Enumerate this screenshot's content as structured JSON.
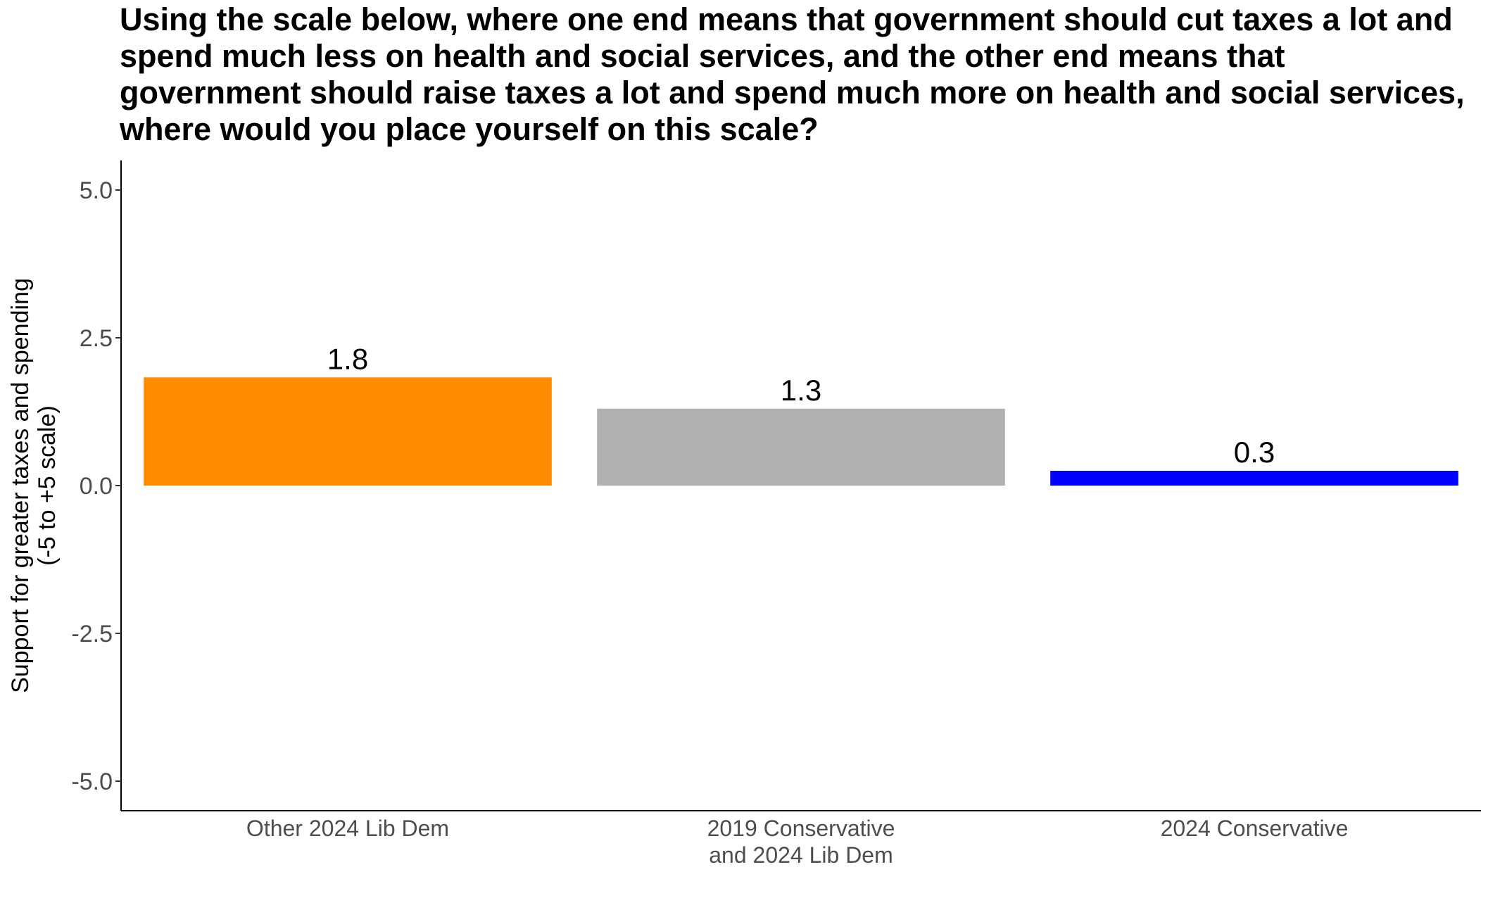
{
  "chart_data": {
    "type": "bar",
    "title": "Using the scale below, where one end means that government should cut taxes a lot and spend much less on health and social services, and the other end means that government should raise taxes a lot and spend much more on health and social services, where would you place yourself on this scale?",
    "ylabel_lines": [
      "Support for greater taxes and spending",
      "(-5 to +5 scale)"
    ],
    "xlabel": "",
    "categories": [
      [
        "Other 2024 Lib Dem"
      ],
      [
        "2019 Conservative",
        "and 2024 Lib Dem"
      ],
      [
        "2024 Conservative"
      ]
    ],
    "values": [
      1.83,
      1.3,
      0.25
    ],
    "value_labels": [
      "1.8",
      "1.3",
      "0.3"
    ],
    "colors": [
      "#FF8C00",
      "#B0B0B0",
      "#0000FF"
    ],
    "ylim": [
      -5.5,
      5.5
    ],
    "yticks": [
      5.0,
      2.5,
      0.0,
      -2.5,
      -5.0
    ],
    "ytick_labels": [
      "5.0",
      "2.5",
      "0.0",
      "-2.5",
      "-5.0"
    ],
    "grid": false,
    "legend": false
  }
}
